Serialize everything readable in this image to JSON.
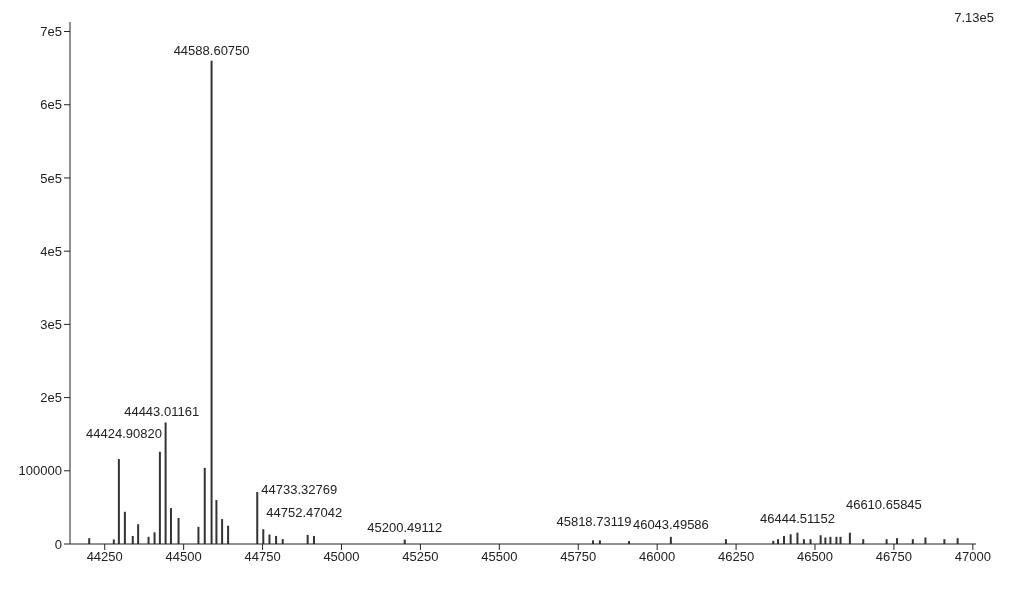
{
  "chart_data": {
    "type": "bar",
    "color": "#333333",
    "x": [
      44201,
      44279,
      44295,
      44314,
      44339,
      44356,
      44389,
      44408,
      44424.9082,
      44443.01161,
      44460,
      44484,
      44547,
      44567,
      44588.6075,
      44604,
      44622,
      44641,
      44733.32769,
      44752.47042,
      44772,
      44793,
      44814,
      44893,
      44913,
      45200.49112,
      45797,
      45818.73119,
      45911,
      46043.49586,
      46218,
      46368,
      46383,
      46402,
      46423,
      46444.51152,
      46465,
      46486,
      46518,
      46533,
      46549,
      46568,
      46581,
      46610.65845,
      46653,
      46727,
      46760,
      46810,
      46850,
      46910,
      46952
    ],
    "values": [
      8000,
      6200,
      116000,
      44000,
      11000,
      27000,
      9800,
      16000,
      126000,
      166000,
      49000,
      35500,
      23500,
      104000,
      660000,
      60000,
      34000,
      25000,
      71000,
      20000,
      13000,
      11000,
      6700,
      12400,
      11000,
      6000,
      5000,
      5000,
      4000,
      9800,
      6600,
      4400,
      6600,
      11000,
      13300,
      15500,
      6600,
      6600,
      12000,
      8900,
      9800,
      9800,
      9800,
      15500,
      6600,
      6600,
      8000,
      6600,
      8900,
      6600,
      8000
    ],
    "xlim": [
      44140,
      47010
    ],
    "xticks": [
      44250,
      44500,
      44750,
      45000,
      45250,
      45500,
      45750,
      46000,
      46250,
      46500,
      46750,
      47000
    ],
    "ylim": [
      0,
      713000
    ],
    "yticks": [
      0,
      100000,
      {
        "value": 200000,
        "label": "2e5"
      },
      {
        "value": 300000,
        "label": "3e5"
      },
      {
        "value": 400000,
        "label": "4e5"
      },
      {
        "value": 500000,
        "label": "5e5"
      },
      {
        "value": 600000,
        "label": "6e5"
      },
      {
        "value": 700000,
        "label": "7e5"
      }
    ],
    "grid": false,
    "legend": false,
    "annotations": [
      "7.13e5",
      {
        "text": "44424.90820",
        "x": 44424.9082,
        "y": 126000
      },
      {
        "text": "44443.01161",
        "x": 44443.01161,
        "y": 166000
      },
      {
        "text": "44588.60750",
        "x": 44588.6075,
        "y": 660000
      },
      {
        "text": "44733.32769",
        "x": 44733.32769,
        "y": 71000
      },
      {
        "text": "44752.47042",
        "x": 44752.47042,
        "y": 20000
      },
      {
        "text": "45200.49112",
        "x": 45200.49112,
        "y": 6000
      },
      {
        "text": "45818.73119",
        "x": 45818.73119,
        "y": 5000
      },
      {
        "text": "46043.49586",
        "x": 46043.49586,
        "y": 9800
      },
      {
        "text": "46444.51152",
        "x": 46444.51152,
        "y": 15500
      },
      {
        "text": "46610.65845",
        "x": 46610.65845,
        "y": 15500
      }
    ]
  }
}
